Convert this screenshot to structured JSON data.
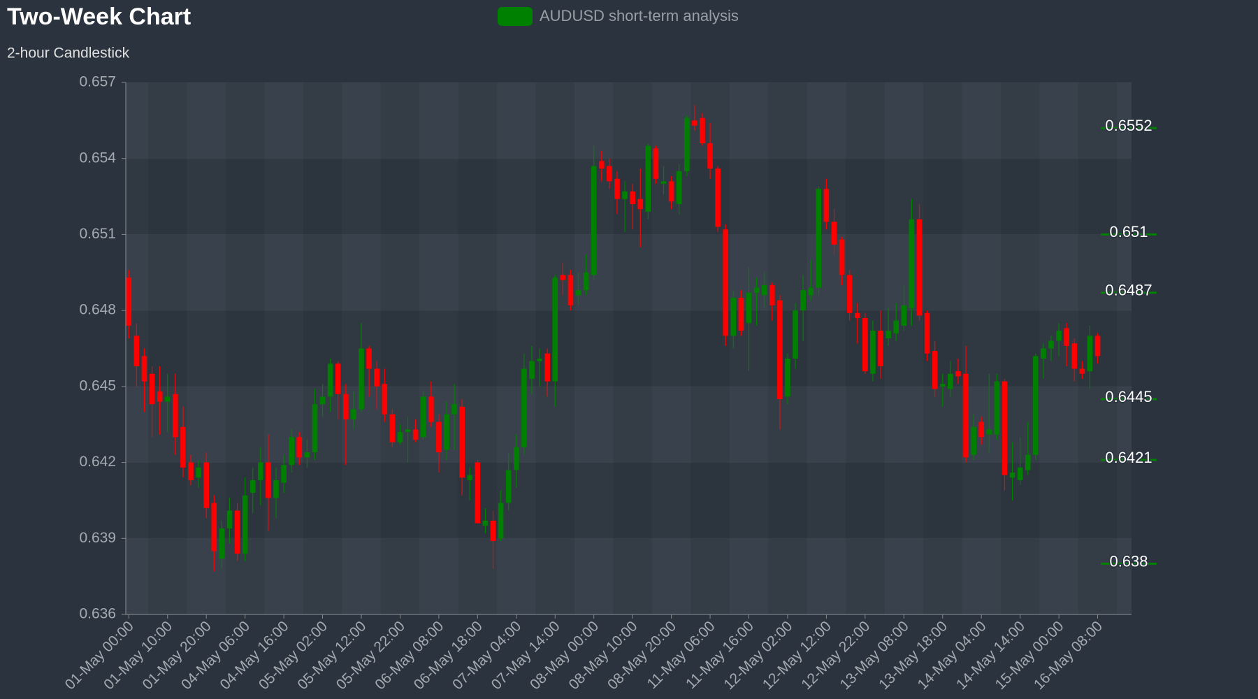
{
  "chart_data": {
    "type": "candlestick",
    "title": "Two-Week Chart",
    "subtitle": "2-hour Candlestick",
    "categories": [
      "01-May 00:00",
      null,
      null,
      null,
      null,
      "01-May 10:00",
      null,
      null,
      null,
      null,
      "01-May 20:00",
      null,
      null,
      null,
      null,
      "04-May 06:00",
      null,
      null,
      null,
      null,
      "04-May 16:00",
      null,
      null,
      null,
      null,
      "05-May 02:00",
      null,
      null,
      null,
      null,
      "05-May 12:00",
      null,
      null,
      null,
      null,
      "05-May 22:00",
      null,
      null,
      null,
      null,
      "06-May 08:00",
      null,
      null,
      null,
      null,
      "06-May 18:00",
      null,
      null,
      null,
      null,
      "07-May 04:00",
      null,
      null,
      null,
      null,
      "07-May 14:00",
      null,
      null,
      null,
      null,
      "08-May 00:00",
      null,
      null,
      null,
      null,
      "08-May 10:00",
      null,
      null,
      null,
      null,
      "08-May 20:00",
      null,
      null,
      null,
      null,
      "11-May 06:00",
      null,
      null,
      null,
      null,
      "11-May 16:00",
      null,
      null,
      null,
      null,
      "12-May 02:00",
      null,
      null,
      null,
      null,
      "12-May 12:00",
      null,
      null,
      null,
      null,
      "12-May 22:00",
      null,
      null,
      null,
      null,
      "13-May 08:00",
      null,
      null,
      null,
      null,
      "13-May 18:00",
      null,
      null,
      null,
      null,
      "14-May 04:00",
      null,
      null,
      null,
      null,
      "14-May 14:00",
      null,
      null,
      null,
      null,
      "15-May 00:00",
      null,
      null,
      null,
      null,
      "16-May 08:00"
    ],
    "series": [
      {
        "name": "AUDUSD short-term analysis",
        "color": "#008000",
        "down_color": "#ff0000",
        "open": [
          0.6493,
          0.647,
          0.6462,
          0.6455,
          0.6448,
          0.6444,
          0.6447,
          0.6434,
          0.642,
          0.6414,
          0.642,
          0.6404,
          0.6382,
          0.6394,
          0.6401,
          0.6384,
          0.6408,
          0.6413,
          0.642,
          0.6406,
          0.6412,
          0.6419,
          0.643,
          0.6422,
          0.6424,
          0.6443,
          0.6446,
          0.6459,
          0.6447,
          0.6437,
          0.6441,
          0.6465,
          0.6457,
          0.6451,
          0.6439,
          0.6428,
          0.6432,
          0.6433,
          0.643,
          0.6446,
          0.6436,
          0.6425,
          0.6439,
          0.6442,
          0.6413,
          0.642,
          0.6395,
          0.6397,
          0.639,
          0.6404,
          0.6417,
          0.6426,
          0.6453,
          0.646,
          0.6463,
          0.6452,
          0.6494,
          0.6494,
          0.6486,
          0.6488,
          0.6494,
          0.6539,
          0.6537,
          0.6532,
          0.6524,
          0.6527,
          0.6524,
          0.6519,
          0.6544,
          0.653,
          0.6531,
          0.6522,
          0.6535,
          0.6555,
          0.6556,
          0.6546,
          0.6536,
          0.6512,
          0.647,
          0.6485,
          0.6475,
          0.6487,
          0.6486,
          0.649,
          0.6484,
          0.6446,
          0.6461,
          0.648,
          0.6486,
          0.6489,
          0.6528,
          0.6515,
          0.6508,
          0.6494,
          0.6479,
          0.6477,
          0.6455,
          0.6472,
          0.6469,
          0.6471,
          0.6474,
          0.6481,
          0.6516,
          0.6479,
          0.6464,
          0.645,
          0.6449,
          0.6456,
          0.6455,
          0.6423,
          0.6436,
          0.6431,
          0.6431,
          0.6452,
          0.6414,
          0.6413,
          0.6417,
          0.6423,
          0.6461,
          0.6465,
          0.6468,
          0.6473,
          0.6467,
          0.6457,
          0.6456,
          0.647
        ],
        "high": [
          0.6496,
          0.6475,
          0.6465,
          0.6458,
          0.6458,
          0.6455,
          0.6455,
          0.6442,
          0.6423,
          0.6421,
          0.6424,
          0.6407,
          0.6397,
          0.6406,
          0.6404,
          0.6414,
          0.6418,
          0.6426,
          0.6431,
          0.6418,
          0.6423,
          0.6433,
          0.6432,
          0.6429,
          0.6449,
          0.6451,
          0.6461,
          0.646,
          0.6451,
          0.6448,
          0.6475,
          0.6466,
          0.646,
          0.6457,
          0.6441,
          0.6435,
          0.6438,
          0.6437,
          0.6448,
          0.6452,
          0.6439,
          0.6444,
          0.6451,
          0.6445,
          0.6418,
          0.6421,
          0.6402,
          0.6401,
          0.6409,
          0.6424,
          0.6431,
          0.6463,
          0.6466,
          0.6465,
          0.6465,
          0.6494,
          0.6499,
          0.6496,
          0.6495,
          0.6502,
          0.6545,
          0.6543,
          0.654,
          0.6535,
          0.6531,
          0.653,
          0.6536,
          0.6546,
          0.6545,
          0.6537,
          0.6533,
          0.6538,
          0.6557,
          0.6561,
          0.6558,
          0.6554,
          0.6537,
          0.6514,
          0.6488,
          0.6488,
          0.6497,
          0.6493,
          0.6495,
          0.6491,
          0.6486,
          0.6463,
          0.6483,
          0.6494,
          0.65,
          0.6529,
          0.6532,
          0.652,
          0.6509,
          0.6496,
          0.6483,
          0.6479,
          0.6476,
          0.648,
          0.6481,
          0.6483,
          0.649,
          0.6524,
          0.6522,
          0.648,
          0.6468,
          0.6455,
          0.646,
          0.6461,
          0.6466,
          0.6439,
          0.6438,
          0.6455,
          0.6455,
          0.6453,
          0.6428,
          0.643,
          0.6436,
          0.6463,
          0.6467,
          0.647,
          0.6475,
          0.6475,
          0.6469,
          0.646,
          0.6474,
          0.6471
        ],
        "low": [
          0.6469,
          0.645,
          0.644,
          0.643,
          0.6431,
          0.6432,
          0.6423,
          0.6414,
          0.6411,
          0.641,
          0.6398,
          0.6377,
          0.6378,
          0.6388,
          0.6381,
          0.6381,
          0.64,
          0.6403,
          0.6393,
          0.6398,
          0.6408,
          0.6416,
          0.6419,
          0.6418,
          0.6421,
          0.6438,
          0.644,
          0.6437,
          0.6419,
          0.6433,
          0.644,
          0.6446,
          0.6441,
          0.6436,
          0.6426,
          0.6427,
          0.642,
          0.6428,
          0.6429,
          0.6434,
          0.6416,
          0.6421,
          0.6425,
          0.6407,
          0.6405,
          0.6396,
          0.6392,
          0.6378,
          0.6389,
          0.6401,
          0.641,
          0.6423,
          0.6447,
          0.645,
          0.6446,
          0.6442,
          0.6486,
          0.648,
          0.6482,
          0.6486,
          0.6492,
          0.6531,
          0.6528,
          0.6518,
          0.6511,
          0.6512,
          0.6505,
          0.6516,
          0.653,
          0.6526,
          0.652,
          0.6518,
          0.6533,
          0.6551,
          0.6545,
          0.6532,
          0.6511,
          0.6466,
          0.6465,
          0.647,
          0.6456,
          0.6474,
          0.6481,
          0.6476,
          0.6433,
          0.6443,
          0.6457,
          0.6468,
          0.6484,
          0.6486,
          0.6512,
          0.6502,
          0.649,
          0.6476,
          0.6467,
          0.6455,
          0.6452,
          0.6453,
          0.6466,
          0.6468,
          0.6472,
          0.6474,
          0.6476,
          0.646,
          0.6446,
          0.6442,
          0.6446,
          0.6451,
          0.642,
          0.6421,
          0.6427,
          0.6424,
          0.6429,
          0.6409,
          0.6405,
          0.6411,
          0.6415,
          0.6421,
          0.6453,
          0.646,
          0.6462,
          0.6458,
          0.6452,
          0.6453,
          0.6449,
          0.6459
        ],
        "close": [
          0.6474,
          0.6458,
          0.6452,
          0.6443,
          0.6444,
          0.6446,
          0.643,
          0.6418,
          0.6413,
          0.6418,
          0.6402,
          0.6385,
          0.6394,
          0.6401,
          0.6384,
          0.6407,
          0.6413,
          0.642,
          0.6406,
          0.6413,
          0.6419,
          0.643,
          0.6422,
          0.6424,
          0.6443,
          0.6446,
          0.6459,
          0.6447,
          0.6437,
          0.6441,
          0.6465,
          0.6457,
          0.645,
          0.6439,
          0.6428,
          0.6432,
          0.6433,
          0.6429,
          0.6446,
          0.6436,
          0.6424,
          0.6439,
          0.6443,
          0.6414,
          0.6415,
          0.6396,
          0.6397,
          0.6389,
          0.6404,
          0.6417,
          0.6426,
          0.6457,
          0.646,
          0.6461,
          0.6452,
          0.6493,
          0.6492,
          0.6482,
          0.6488,
          0.6495,
          0.6537,
          0.6536,
          0.6531,
          0.6524,
          0.6527,
          0.6522,
          0.652,
          0.6545,
          0.6532,
          0.6531,
          0.6523,
          0.6535,
          0.6556,
          0.6553,
          0.6546,
          0.6536,
          0.6513,
          0.647,
          0.6485,
          0.6472,
          0.6487,
          0.6489,
          0.649,
          0.6482,
          0.6445,
          0.6461,
          0.648,
          0.6488,
          0.6489,
          0.6528,
          0.6515,
          0.6506,
          0.6494,
          0.6479,
          0.6477,
          0.6456,
          0.6472,
          0.6458,
          0.6472,
          0.6476,
          0.6482,
          0.6516,
          0.6478,
          0.6463,
          0.6449,
          0.6451,
          0.6455,
          0.6454,
          0.6422,
          0.6434,
          0.643,
          0.6433,
          0.6452,
          0.6415,
          0.6416,
          0.6418,
          0.6423,
          0.6462,
          0.6465,
          0.6468,
          0.6472,
          0.6466,
          0.6457,
          0.6455,
          0.647,
          0.6462
        ]
      }
    ],
    "levels": [
      0.6552,
      0.651,
      0.6487,
      0.6445,
      0.6421,
      0.638
    ],
    "level_color": "#008000",
    "ylim": [
      0.636,
      0.657
    ],
    "yticks": [
      0.636,
      0.639,
      0.642,
      0.645,
      0.648,
      0.651,
      0.654,
      0.657
    ],
    "grid": true
  }
}
